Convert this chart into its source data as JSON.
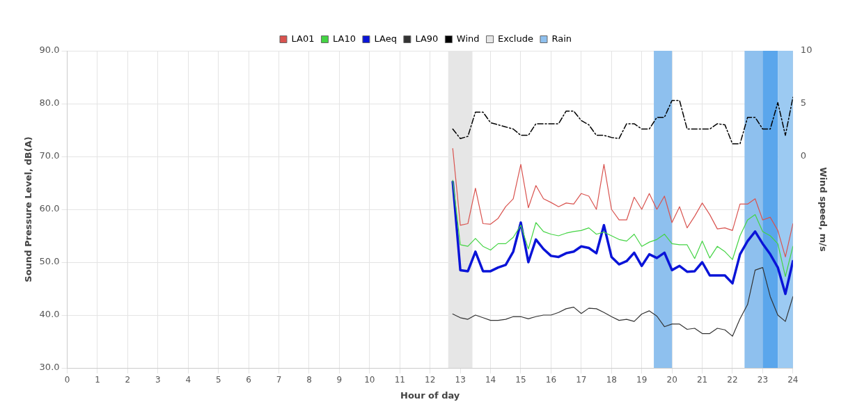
{
  "chart_data": {
    "type": "line",
    "xlabel": "Hour of day",
    "ylabel": "Sound Pressure Level, dB(A)",
    "y2label": "Wind speed, m/s",
    "x": [
      12.75,
      13,
      13.25,
      13.5,
      13.75,
      14,
      14.25,
      14.5,
      14.75,
      15,
      15.25,
      15.5,
      15.75,
      16,
      16.25,
      16.5,
      16.75,
      17,
      17.25,
      17.5,
      17.75,
      18,
      18.25,
      18.5,
      18.75,
      19,
      19.25,
      19.5,
      19.75,
      20,
      20.25,
      20.5,
      20.75,
      21,
      21.25,
      21.5,
      21.75,
      22,
      22.25,
      22.5,
      22.75,
      23,
      23.25,
      23.5,
      23.75,
      24
    ],
    "series": [
      {
        "name": "LA01",
        "color": "#d9534f",
        "values": [
          71.5,
          57.0,
          57.3,
          64.0,
          57.3,
          57.2,
          58.3,
          60.5,
          62.0,
          68.5,
          60.3,
          64.5,
          62.0,
          61.3,
          60.5,
          61.2,
          61.0,
          63.0,
          62.5,
          60.0,
          68.5,
          60.0,
          58.0,
          58.0,
          62.3,
          60.0,
          63.0,
          60.0,
          62.5,
          57.5,
          60.5,
          56.5,
          58.7,
          61.2,
          59.0,
          56.3,
          56.5,
          56.0,
          61.0,
          61.0,
          62.0,
          58.0,
          58.5,
          56.0,
          51.0,
          57.3
        ]
      },
      {
        "name": "LA10",
        "color": "#44d444",
        "values": [
          65.5,
          53.3,
          53.0,
          54.5,
          53.0,
          52.3,
          53.5,
          53.5,
          54.7,
          57.0,
          52.5,
          57.5,
          55.8,
          55.3,
          55.0,
          55.5,
          55.8,
          56.0,
          56.5,
          55.3,
          55.7,
          55.0,
          54.3,
          54.0,
          55.3,
          53.0,
          53.8,
          54.3,
          55.3,
          53.5,
          53.3,
          53.3,
          50.7,
          54.0,
          50.8,
          53.0,
          52.0,
          50.5,
          55.0,
          58.0,
          59.0,
          55.8,
          55.0,
          53.5,
          47.3,
          53.0
        ]
      },
      {
        "name": "LAeq",
        "color": "#0a14d8",
        "values": [
          65.2,
          48.5,
          48.3,
          52.0,
          48.3,
          48.3,
          49.0,
          49.5,
          52.0,
          57.5,
          50.0,
          54.3,
          52.5,
          51.2,
          51.0,
          51.7,
          52.0,
          53.0,
          52.7,
          51.7,
          57.0,
          51.0,
          49.6,
          50.2,
          51.8,
          49.3,
          51.5,
          50.8,
          51.8,
          48.5,
          49.3,
          48.2,
          48.3,
          50.0,
          47.5,
          47.5,
          47.5,
          46.0,
          51.5,
          54.0,
          55.8,
          53.5,
          51.5,
          49.0,
          44.0,
          50.2
        ]
      },
      {
        "name": "LA90",
        "color": "#333333",
        "values": [
          40.2,
          39.5,
          39.2,
          40.0,
          39.5,
          39.0,
          39.0,
          39.2,
          39.7,
          39.7,
          39.3,
          39.7,
          40.0,
          40.0,
          40.5,
          41.2,
          41.5,
          40.3,
          41.3,
          41.2,
          40.5,
          39.7,
          39.0,
          39.2,
          38.8,
          40.2,
          40.8,
          39.8,
          37.8,
          38.3,
          38.3,
          37.3,
          37.5,
          36.5,
          36.5,
          37.5,
          37.2,
          36.0,
          39.3,
          42.0,
          48.5,
          49.0,
          43.5,
          40.0,
          38.8,
          43.5
        ]
      },
      {
        "name": "Wind",
        "color": "#000000",
        "axis": "y2",
        "line_style": "dashed",
        "values": [
          2.6,
          1.7,
          1.9,
          4.2,
          4.2,
          3.2,
          3.0,
          2.8,
          2.6,
          2.0,
          2.0,
          3.1,
          3.1,
          3.1,
          3.1,
          4.3,
          4.3,
          3.4,
          3.0,
          2.0,
          2.0,
          1.8,
          1.7,
          3.1,
          3.1,
          2.6,
          2.6,
          3.7,
          3.7,
          5.3,
          5.3,
          2.6,
          2.6,
          2.6,
          2.6,
          3.1,
          3.0,
          1.2,
          1.2,
          3.7,
          3.7,
          2.6,
          2.6,
          5.1,
          2.0,
          5.6
        ]
      }
    ],
    "bands": [
      {
        "axis": "x",
        "from": 12.6,
        "to": 13.4,
        "label": "Exclude",
        "color": "#e6e6e6"
      },
      {
        "axis": "x",
        "from": 19.4,
        "to": 20.0,
        "label": "Rain",
        "color": "#8ec0ee"
      },
      {
        "axis": "x",
        "from": 22.4,
        "to": 23.0,
        "color": "#8ec0ee"
      },
      {
        "axis": "x",
        "from": 23.0,
        "to": 23.5,
        "color": "#5aa6ec"
      },
      {
        "axis": "x",
        "from": 23.5,
        "to": 24.0,
        "color": "#9ccaf2"
      }
    ],
    "xlim": [
      0,
      24
    ],
    "xticks": [
      0,
      1,
      2,
      3,
      4,
      5,
      6,
      7,
      8,
      9,
      10,
      11,
      12,
      13,
      14,
      15,
      16,
      17,
      18,
      19,
      20,
      21,
      22,
      23,
      24
    ],
    "ylim": [
      30,
      90
    ],
    "yticks": [
      {
        "value": 30,
        "label": "30.0"
      },
      {
        "value": 40,
        "label": "40.0"
      },
      {
        "value": 50,
        "label": "50.0"
      },
      {
        "value": 60,
        "label": "60.0"
      },
      {
        "value": 70,
        "label": "70.0"
      },
      {
        "value": 80,
        "label": "80.0"
      },
      {
        "value": 90,
        "label": "90.0"
      }
    ],
    "y2lim": [
      -20,
      10
    ],
    "y2ticks": [
      0,
      5,
      10
    ],
    "grid": true,
    "legend": "top",
    "marker": "none",
    "line_style": "solid"
  }
}
